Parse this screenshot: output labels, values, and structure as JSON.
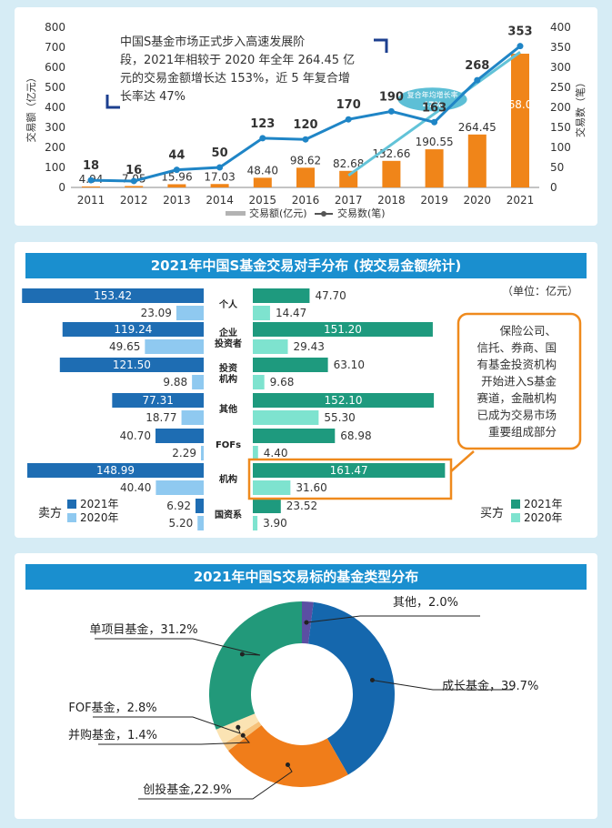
{
  "chart_data": [
    {
      "type": "bar+line",
      "x": [
        "2011",
        "2012",
        "2013",
        "2014",
        "2015",
        "2016",
        "2017",
        "2018",
        "2019",
        "2020",
        "2021"
      ],
      "series": [
        {
          "name": "交易额(亿元)",
          "type": "bar",
          "axis": "left",
          "values": [
            4.94,
            7.05,
            15.96,
            17.03,
            48.4,
            98.62,
            82.68,
            132.66,
            190.55,
            264.45,
            668.07
          ]
        },
        {
          "name": "交易数(笔)",
          "type": "line",
          "axis": "right",
          "values": [
            18,
            16,
            44,
            50,
            123,
            120,
            170,
            190,
            163,
            268,
            353
          ]
        }
      ],
      "trend_line": {
        "x": [
          "2017",
          "2021"
        ],
        "label": [
          "复合年均增长率",
          "47%"
        ]
      },
      "ylabel_left": "交易额（亿元）",
      "ylabel_right": "交易数（笔）",
      "ylim_left": [
        0,
        800
      ],
      "yticks_left": [
        "0",
        "100",
        "200",
        "300",
        "400",
        "500",
        "600",
        "700",
        "800"
      ],
      "ylim_right": [
        0,
        400
      ],
      "yticks_right": [
        "0",
        "50",
        "100",
        "150",
        "200",
        "250",
        "300",
        "350",
        "400"
      ],
      "annotation": [
        "中国S基金市场正式步入高速发展阶",
        "段，2021年相较于 2020 年全年 264.45 亿",
        "元的交易金额增长达 153%，近 5 年复合增",
        "长率达 47%"
      ],
      "legend": "bottom",
      "colors": {
        "bar": "#f08519",
        "line": "#1f85c6",
        "trend": "#62c3d8"
      }
    },
    {
      "type": "bar",
      "title": "2021年中国S基金交易对手分布 (按交易金额统计)",
      "unit": "（单位：亿元）",
      "categories": [
        [
          "个人"
        ],
        [
          "企业",
          "投资者"
        ],
        [
          "投资",
          "机构"
        ],
        [
          "其他"
        ],
        [
          "FOFs"
        ],
        [
          "机构"
        ],
        [
          "国资系"
        ]
      ],
      "seller": {
        "label": "卖方",
        "series": [
          {
            "name": "2021年",
            "values": [
              153.42,
              119.24,
              121.5,
              77.31,
              40.7,
              148.99,
              6.92
            ],
            "color": "#1e6db3"
          },
          {
            "name": "2020年",
            "values": [
              23.09,
              49.65,
              9.88,
              18.77,
              2.29,
              40.4,
              5.2
            ],
            "color": "#8fc9f0"
          }
        ]
      },
      "buyer": {
        "label": "买方",
        "series": [
          {
            "name": "2021年",
            "values": [
              47.7,
              151.2,
              63.1,
              152.1,
              68.98,
              161.47,
              23.52
            ],
            "color": "#1e9a7e"
          },
          {
            "name": "2020年",
            "values": [
              14.47,
              29.43,
              9.68,
              55.3,
              4.4,
              31.6,
              3.9
            ],
            "color": "#7ee3cf"
          }
        ]
      },
      "callout": [
        "保险公司、",
        "信托、券商、国",
        "有基金投资机构",
        "开始进入S基金",
        "赛道，金融机构",
        "已成为交易市场",
        "重要组成部分"
      ]
    },
    {
      "type": "pie",
      "title": "2021年中国S交易标的基金类型分布",
      "slices": [
        {
          "name": "其他",
          "value": 2.0,
          "label": "其他，2.0%",
          "color": "#5b4fa3"
        },
        {
          "name": "成长基金",
          "value": 39.7,
          "label": "成长基金，39.7%",
          "color": "#1567ad"
        },
        {
          "name": "创投基金",
          "value": 22.9,
          "label": "创投基金,22.9%",
          "color": "#f07d1a"
        },
        {
          "name": "并购基金",
          "value": 1.4,
          "label": "并购基金，1.4%",
          "color": "#f6c27a"
        },
        {
          "name": "FOF基金",
          "value": 2.8,
          "label": "FOF基金，2.8%",
          "color": "#fbe3b3"
        },
        {
          "name": "单项目基金",
          "value": 31.2,
          "label": "单项目基金，31.2%",
          "color": "#22997a"
        }
      ]
    }
  ]
}
